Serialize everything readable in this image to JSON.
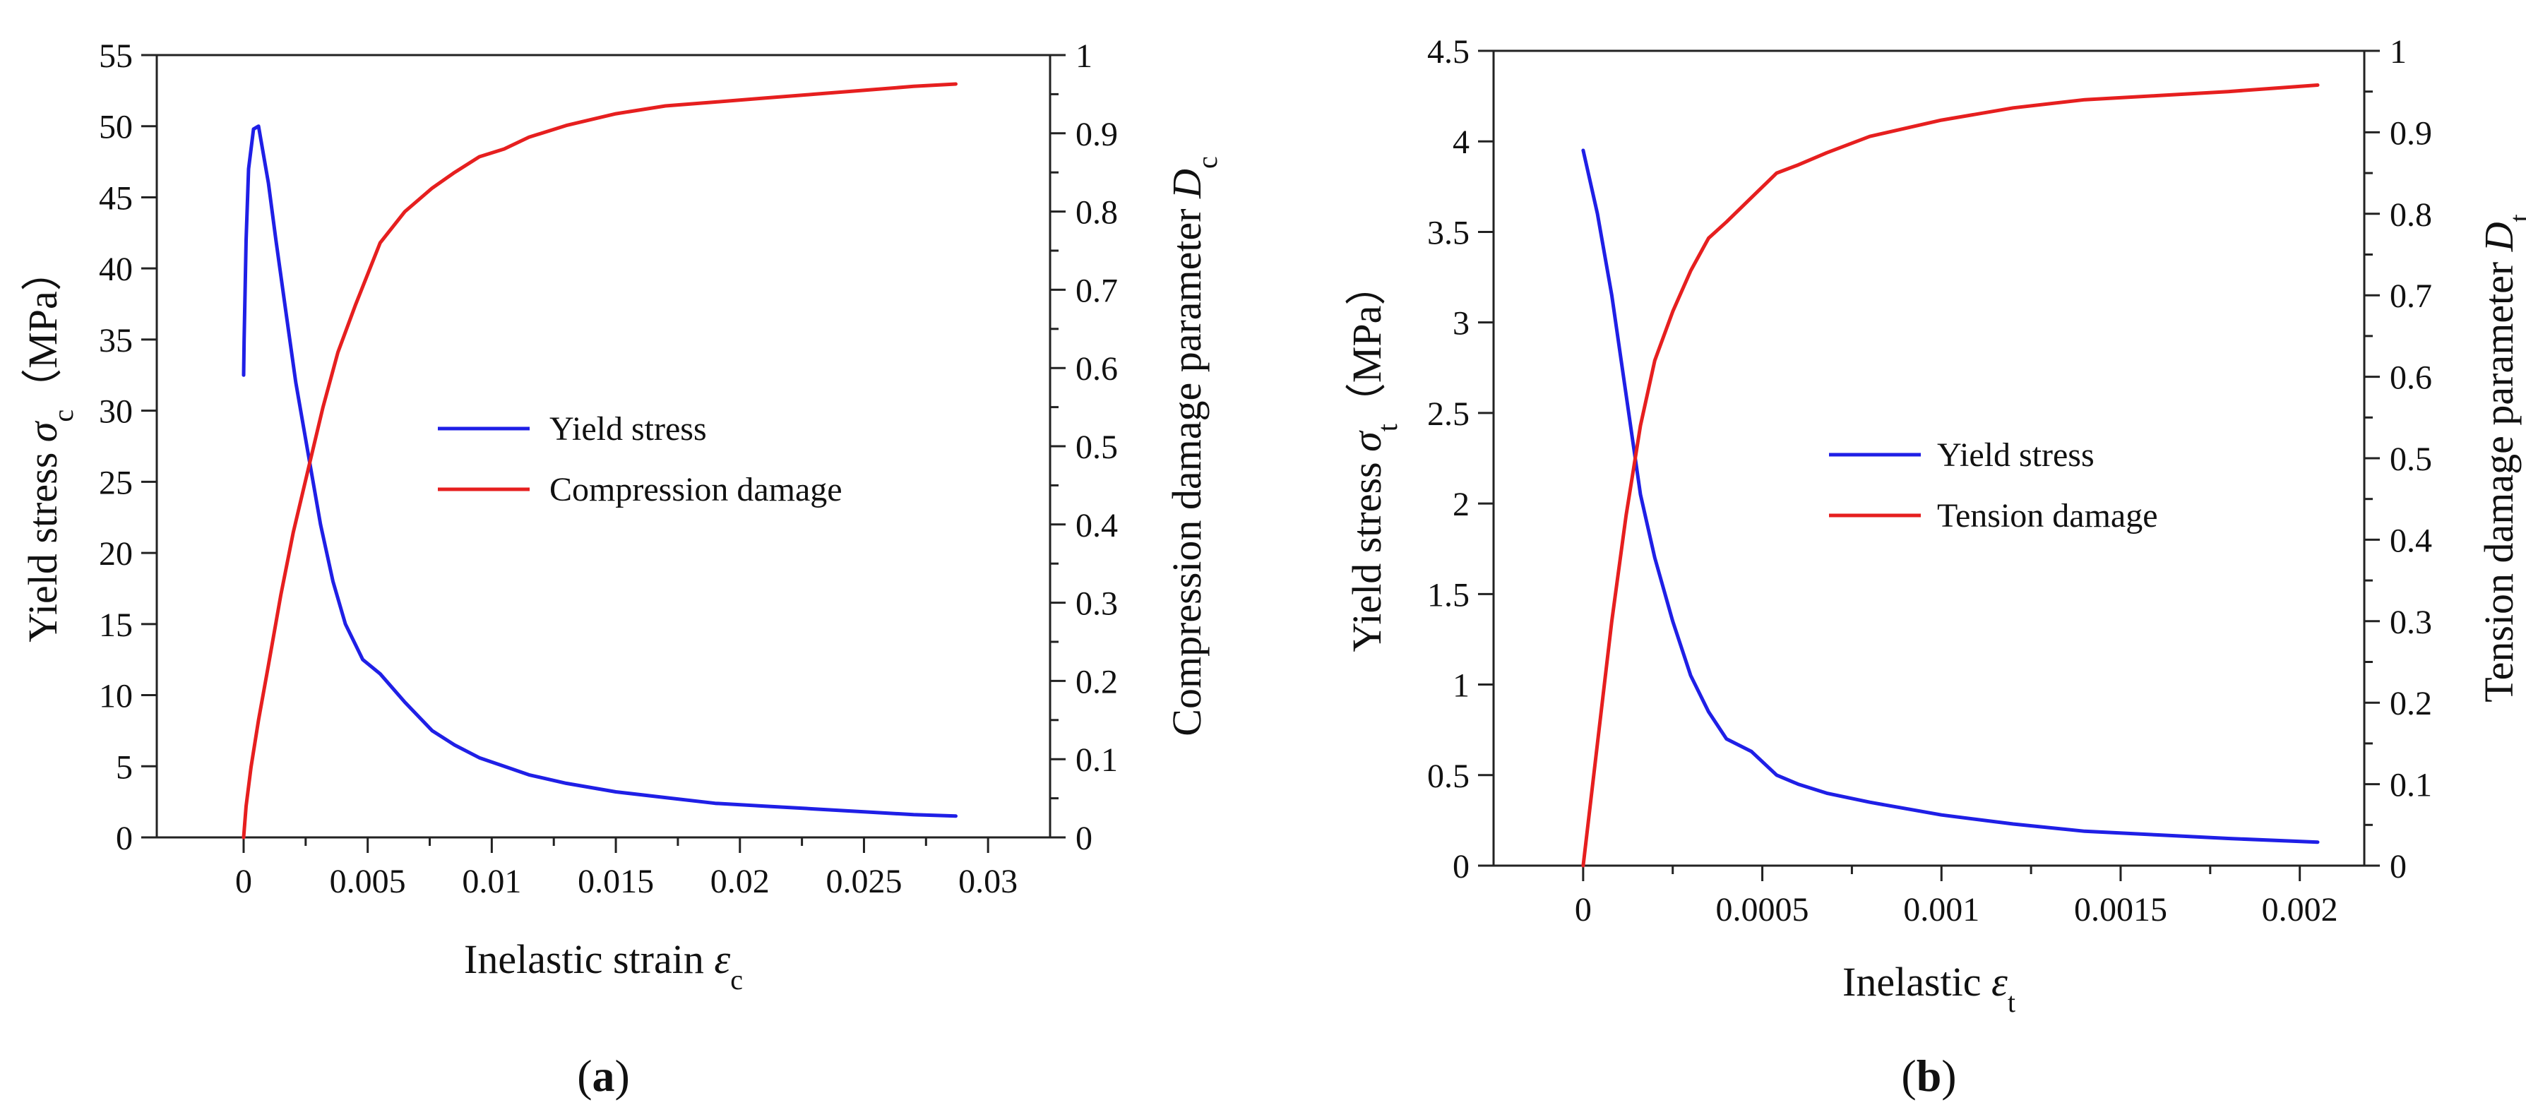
{
  "chart_data": [
    {
      "type": "line",
      "panel_label": "a",
      "xlabel": {
        "prefix": "Inelastic strain ",
        "symbol": "ε",
        "sub": "c"
      },
      "ylabel": {
        "prefix": "Yield stress ",
        "symbol": "σ",
        "sub": "c",
        "suffix": "（MPa）"
      },
      "y2label": {
        "prefix": "Compression damage parameter ",
        "symbol": "D",
        "sub": "c"
      },
      "xlim": [
        -0.0035,
        0.0325
      ],
      "ylim": [
        0,
        55
      ],
      "y2lim": [
        0,
        1
      ],
      "xticks": [
        0,
        0.005,
        0.01,
        0.015,
        0.02,
        0.025,
        0.03
      ],
      "xtick_labels": [
        "0",
        "0.005",
        "0.01",
        "0.015",
        "0.02",
        "0.025",
        "0.03"
      ],
      "yticks": [
        0,
        5,
        10,
        15,
        20,
        25,
        30,
        35,
        40,
        45,
        50,
        55
      ],
      "ytick_labels": [
        "0",
        "5",
        "10",
        "15",
        "20",
        "25",
        "30",
        "35",
        "40",
        "45",
        "50",
        "55"
      ],
      "y2ticks": [
        0,
        0.1,
        0.2,
        0.3,
        0.4,
        0.5,
        0.6,
        0.7,
        0.8,
        0.9,
        1
      ],
      "y2tick_labels": [
        "0",
        "0.1",
        "0.2",
        "0.3",
        "0.4",
        "0.5",
        "0.6",
        "0.7",
        "0.8",
        "0.9",
        "1"
      ],
      "legend_position": "center",
      "series": [
        {
          "name": "Yield stress",
          "color": "#1f1fe6",
          "axis": "left",
          "x": [
            0,
            2e-05,
            0.0001,
            0.0002,
            0.0004,
            0.0006,
            0.0008,
            0.001,
            0.0013,
            0.0017,
            0.0021,
            0.0026,
            0.0031,
            0.0036,
            0.0041,
            0.0048,
            0.0055,
            0.0065,
            0.0076,
            0.0085,
            0.0095,
            0.0105,
            0.0115,
            0.013,
            0.015,
            0.017,
            0.019,
            0.021,
            0.023,
            0.025,
            0.027,
            0.0287
          ],
          "y": [
            32.5,
            35,
            42,
            47,
            49.8,
            50,
            48,
            46,
            42,
            37,
            32,
            27,
            22,
            18,
            15,
            12.5,
            11.5,
            9.5,
            7.5,
            6.5,
            5.6,
            5,
            4.4,
            3.8,
            3.2,
            2.8,
            2.4,
            2.2,
            2,
            1.8,
            1.6,
            1.5
          ]
        },
        {
          "name": "Compression damage",
          "color": "#e61f1f",
          "axis": "right",
          "x": [
            0,
            0.0001,
            0.0003,
            0.0006,
            0.001,
            0.0015,
            0.002,
            0.0026,
            0.0032,
            0.0038,
            0.0045,
            0.0055,
            0.0065,
            0.0076,
            0.0085,
            0.0095,
            0.0105,
            0.0115,
            0.013,
            0.015,
            0.017,
            0.019,
            0.021,
            0.023,
            0.025,
            0.027,
            0.0287
          ],
          "y": [
            0,
            0.04,
            0.09,
            0.15,
            0.22,
            0.31,
            0.39,
            0.47,
            0.55,
            0.62,
            0.68,
            0.76,
            0.8,
            0.83,
            0.85,
            0.87,
            0.88,
            0.895,
            0.91,
            0.925,
            0.935,
            0.94,
            0.945,
            0.95,
            0.955,
            0.96,
            0.963
          ]
        }
      ]
    },
    {
      "type": "line",
      "panel_label": "b",
      "xlabel": {
        "prefix": "Inelastic ",
        "symbol": "ε",
        "sub": "t"
      },
      "ylabel": {
        "prefix": "Yield stress ",
        "symbol": "σ",
        "sub": "t",
        "suffix": "（MPa）"
      },
      "y2label": {
        "prefix": "Tension damage parameter ",
        "symbol": "D",
        "sub": "t"
      },
      "xlim": [
        -0.00025,
        0.00218
      ],
      "ylim": [
        0,
        4.5
      ],
      "y2lim": [
        0,
        1
      ],
      "xticks": [
        0,
        0.0005,
        0.001,
        0.0015,
        0.002
      ],
      "xtick_labels": [
        "0",
        "0.0005",
        "0.001",
        "0.0015",
        "0.002"
      ],
      "yticks": [
        0,
        0.5,
        1,
        1.5,
        2,
        2.5,
        3,
        3.5,
        4,
        4.5
      ],
      "ytick_labels": [
        "0",
        "0.5",
        "1",
        "1.5",
        "2",
        "2.5",
        "3",
        "3.5",
        "4",
        "4.5"
      ],
      "y2ticks": [
        0,
        0.1,
        0.2,
        0.3,
        0.4,
        0.5,
        0.6,
        0.7,
        0.8,
        0.9,
        1
      ],
      "y2tick_labels": [
        "0",
        "0.1",
        "0.2",
        "0.3",
        "0.4",
        "0.5",
        "0.6",
        "0.7",
        "0.8",
        "0.9",
        "1"
      ],
      "legend_position": "center",
      "series": [
        {
          "name": "Yield stress",
          "color": "#1f1fe6",
          "axis": "left",
          "x": [
            0,
            4e-05,
            8e-05,
            0.00012,
            0.00016,
            0.0002,
            0.00025,
            0.0003,
            0.00035,
            0.0004,
            0.00047,
            0.00054,
            0.0006,
            0.00068,
            0.0008,
            0.001,
            0.0012,
            0.0014,
            0.0016,
            0.0018,
            0.00205
          ],
          "y": [
            3.95,
            3.6,
            3.15,
            2.6,
            2.05,
            1.7,
            1.35,
            1.05,
            0.85,
            0.7,
            0.63,
            0.5,
            0.45,
            0.4,
            0.35,
            0.28,
            0.23,
            0.19,
            0.17,
            0.15,
            0.13
          ]
        },
        {
          "name": "Tension damage",
          "color": "#e61f1f",
          "axis": "right",
          "x": [
            0,
            4e-05,
            8e-05,
            0.00012,
            0.00016,
            0.0002,
            0.00025,
            0.0003,
            0.00035,
            0.0004,
            0.00047,
            0.00054,
            0.0006,
            0.00068,
            0.0008,
            0.001,
            0.0012,
            0.0014,
            0.0016,
            0.0018,
            0.00205
          ],
          "y": [
            0,
            0.15,
            0.3,
            0.43,
            0.54,
            0.62,
            0.68,
            0.73,
            0.77,
            0.79,
            0.82,
            0.85,
            0.86,
            0.875,
            0.895,
            0.915,
            0.93,
            0.94,
            0.945,
            0.95,
            0.958
          ]
        }
      ]
    }
  ]
}
